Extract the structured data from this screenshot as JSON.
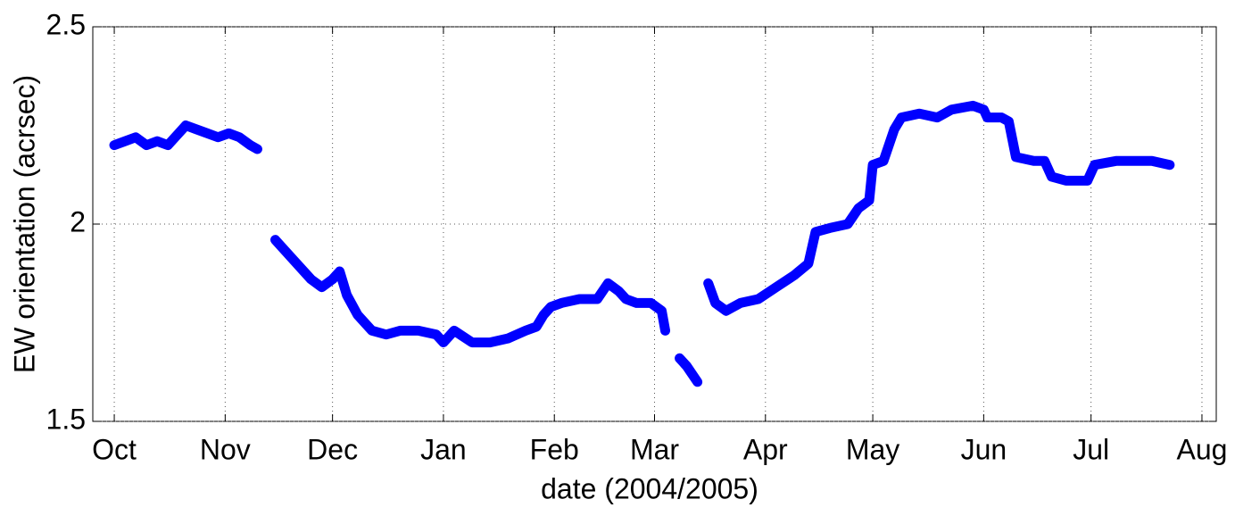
{
  "chart_data": {
    "type": "line",
    "xlabel": "date (2004/2005)",
    "ylabel": "EW orientation (acrsec)",
    "x": [
      0,
      3,
      6,
      9,
      12,
      15,
      18,
      20,
      23,
      26,
      29,
      32,
      35,
      38,
      40,
      42,
      45,
      50,
      55,
      58,
      61,
      63,
      65,
      68,
      72,
      76,
      80,
      85,
      90,
      92,
      95,
      100,
      105,
      110,
      115,
      118,
      120,
      122,
      125,
      130,
      135,
      138,
      141,
      143,
      146,
      150,
      153,
      154,
      156,
      158,
      160,
      163,
      165,
      166,
      168,
      171,
      175,
      180,
      185,
      190,
      194,
      196,
      200,
      205,
      208,
      211,
      212,
      215,
      218,
      220,
      225,
      230,
      234,
      240,
      243,
      244,
      248,
      250,
      252,
      257,
      260,
      262,
      266,
      270,
      272,
      274,
      280,
      285,
      290,
      295
    ],
    "series": [
      {
        "name": "EW orientation",
        "color": "#0000ff",
        "values": [
          2.2,
          2.21,
          2.22,
          2.2,
          2.21,
          2.2,
          2.23,
          2.25,
          2.24,
          2.23,
          2.22,
          2.23,
          2.22,
          2.2,
          2.19,
          null,
          1.96,
          1.91,
          1.86,
          1.84,
          1.86,
          1.88,
          1.82,
          1.77,
          1.73,
          1.72,
          1.73,
          1.73,
          1.72,
          1.7,
          1.73,
          1.7,
          1.7,
          1.71,
          1.73,
          1.74,
          1.77,
          1.79,
          1.8,
          1.81,
          1.81,
          1.85,
          1.83,
          1.81,
          1.8,
          1.8,
          1.78,
          1.73,
          null,
          1.66,
          1.64,
          1.6,
          null,
          1.85,
          1.8,
          1.78,
          1.8,
          1.81,
          1.84,
          1.87,
          1.9,
          1.98,
          1.99,
          2.0,
          2.04,
          2.06,
          2.15,
          2.16,
          2.24,
          2.27,
          2.28,
          2.27,
          2.29,
          2.3,
          2.29,
          2.27,
          2.27,
          2.26,
          2.17,
          2.16,
          2.16,
          2.12,
          2.11,
          2.11,
          2.11,
          2.15,
          2.16,
          2.16,
          2.16,
          2.15
        ]
      }
    ],
    "xlim": [
      -6,
      308
    ],
    "xticks": [
      {
        "value": 0,
        "label": "Oct"
      },
      {
        "value": 31,
        "label": "Nov"
      },
      {
        "value": 61,
        "label": "Dec"
      },
      {
        "value": 92,
        "label": "Jan"
      },
      {
        "value": 123,
        "label": "Feb"
      },
      {
        "value": 151,
        "label": "Mar"
      },
      {
        "value": 182,
        "label": "Apr"
      },
      {
        "value": 212,
        "label": "May"
      },
      {
        "value": 243,
        "label": "Jun"
      },
      {
        "value": 273,
        "label": "Jul"
      },
      {
        "value": 304,
        "label": "Aug"
      }
    ],
    "ylim": [
      1.5,
      2.5
    ],
    "yticks": [
      1.5,
      2,
      2.5
    ],
    "grid": true
  }
}
